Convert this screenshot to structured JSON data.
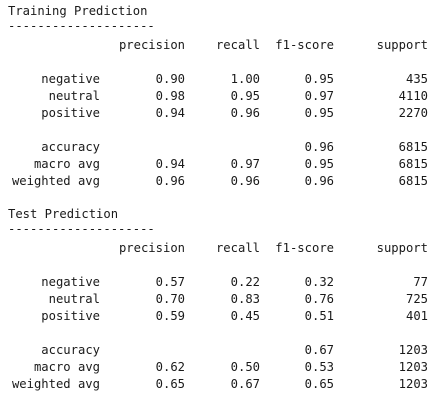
{
  "reports": [
    {
      "title": "Training Prediction",
      "underline": "--------------------",
      "headers": [
        "precision",
        "recall",
        "f1-score",
        "support"
      ],
      "classes": [
        {
          "label": "negative",
          "precision": "0.90",
          "recall": "1.00",
          "f1": "0.95",
          "support": "435"
        },
        {
          "label": "neutral",
          "precision": "0.98",
          "recall": "0.95",
          "f1": "0.97",
          "support": "4110"
        },
        {
          "label": "positive",
          "precision": "0.94",
          "recall": "0.96",
          "f1": "0.95",
          "support": "2270"
        }
      ],
      "summary": [
        {
          "label": "accuracy",
          "precision": "",
          "recall": "",
          "f1": "0.96",
          "support": "6815"
        },
        {
          "label": "macro avg",
          "precision": "0.94",
          "recall": "0.97",
          "f1": "0.95",
          "support": "6815"
        },
        {
          "label": "weighted avg",
          "precision": "0.96",
          "recall": "0.96",
          "f1": "0.96",
          "support": "6815"
        }
      ]
    },
    {
      "title": "Test Prediction",
      "underline": "--------------------",
      "headers": [
        "precision",
        "recall",
        "f1-score",
        "support"
      ],
      "classes": [
        {
          "label": "negative",
          "precision": "0.57",
          "recall": "0.22",
          "f1": "0.32",
          "support": "77"
        },
        {
          "label": "neutral",
          "precision": "0.70",
          "recall": "0.83",
          "f1": "0.76",
          "support": "725"
        },
        {
          "label": "positive",
          "precision": "0.59",
          "recall": "0.45",
          "f1": "0.51",
          "support": "401"
        }
      ],
      "summary": [
        {
          "label": "accuracy",
          "precision": "",
          "recall": "",
          "f1": "0.67",
          "support": "1203"
        },
        {
          "label": "macro avg",
          "precision": "0.62",
          "recall": "0.50",
          "f1": "0.53",
          "support": "1203"
        },
        {
          "label": "weighted avg",
          "precision": "0.65",
          "recall": "0.67",
          "f1": "0.65",
          "support": "1203"
        }
      ]
    }
  ]
}
